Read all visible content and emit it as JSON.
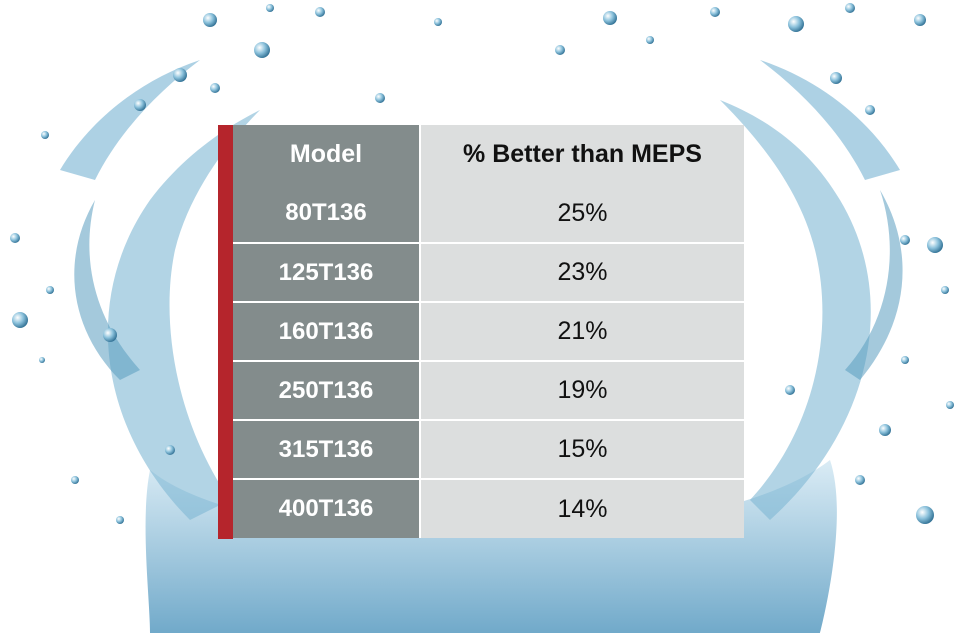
{
  "table": {
    "header": {
      "model": "Model",
      "value": "% Better than MEPS"
    },
    "rows": [
      {
        "model": "80T136",
        "value": "25%"
      },
      {
        "model": "125T136",
        "value": "23%"
      },
      {
        "model": "160T136",
        "value": "21%"
      },
      {
        "model": "250T136",
        "value": "19%"
      },
      {
        "model": "315T136",
        "value": "15%"
      },
      {
        "model": "400T136",
        "value": "14%"
      }
    ]
  },
  "colors": {
    "accent": "#b5252c",
    "model_cell": "#838c8c",
    "value_cell": "#dcdede",
    "water": "#5fa3c6"
  }
}
